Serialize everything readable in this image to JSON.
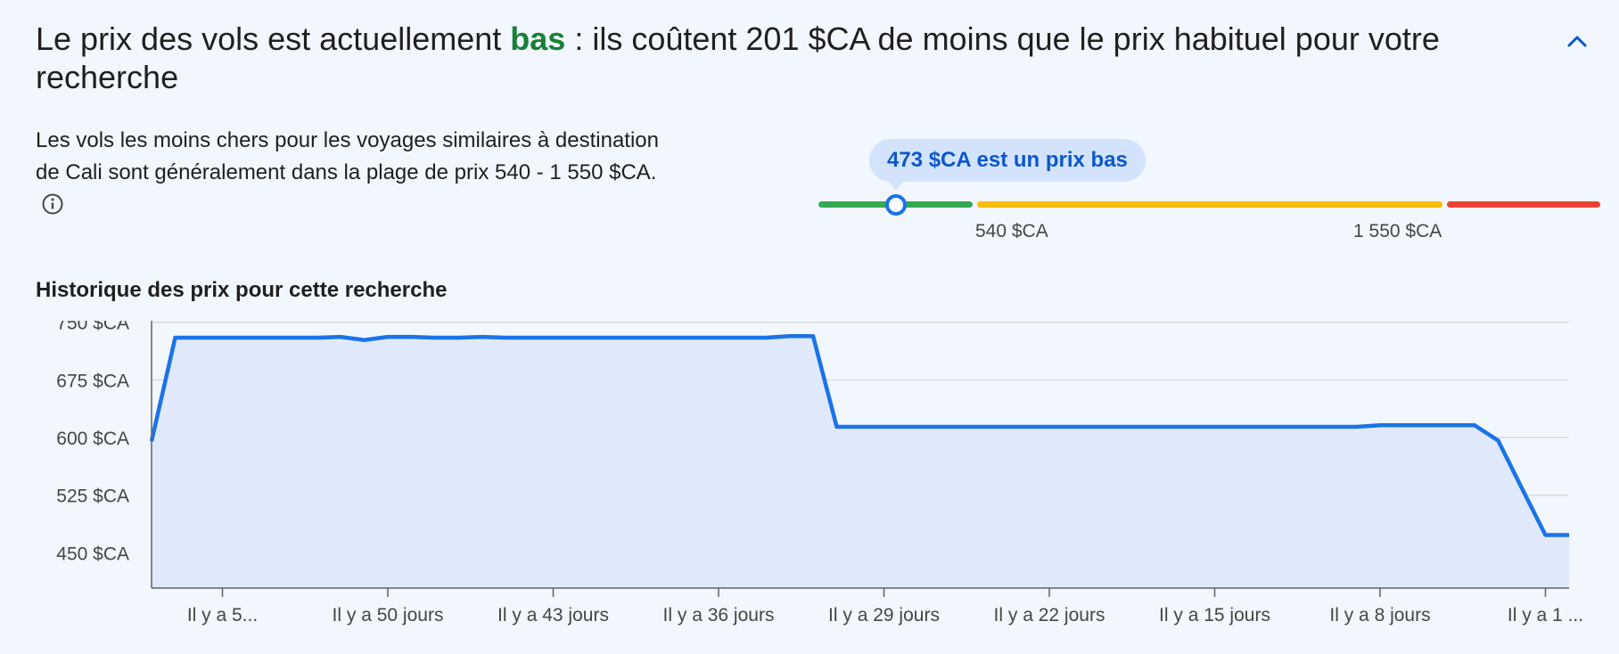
{
  "header": {
    "title_before": "Le prix des vols est actuellement ",
    "title_low": "bas",
    "title_after": " : ils coûtent 201 $CA de moins que le prix habituel pour votre recherche"
  },
  "insight": {
    "description": "Les vols les moins chers pour les voyages similaires à destination de Cali sont généralement dans la plage de prix 540 - 1 550 $CA."
  },
  "price_range": {
    "current_label": "473 $CA est un prix bas",
    "current_value": 473,
    "low_label": "540 $CA",
    "high_label": "1 550 $CA",
    "low": 540,
    "high": 1550,
    "colors": {
      "low": "#34a853",
      "typical": "#fbbc04",
      "high": "#ea4335",
      "marker": "#1a73e8"
    }
  },
  "history": {
    "title": "Historique des prix pour cette recherche"
  },
  "chart_data": {
    "type": "area",
    "title": "Historique des prix pour cette recherche",
    "xlabel": "",
    "ylabel": "",
    "x_ticks": [
      {
        "label": "Il y a 5...",
        "days_ago": 57
      },
      {
        "label": "Il y a 50 jours",
        "days_ago": 50
      },
      {
        "label": "Il y a 43 jours",
        "days_ago": 43
      },
      {
        "label": "Il y a 36 jours",
        "days_ago": 36
      },
      {
        "label": "Il y a 29 jours",
        "days_ago": 29
      },
      {
        "label": "Il y a 22 jours",
        "days_ago": 22
      },
      {
        "label": "Il y a 15 jours",
        "days_ago": 15
      },
      {
        "label": "Il y a 8 jours",
        "days_ago": 8
      },
      {
        "label": "Il y a 1 ...",
        "days_ago": 1
      }
    ],
    "y_ticks": [
      {
        "label": "450 $CA",
        "value": 450
      },
      {
        "label": "525 $CA",
        "value": 525
      },
      {
        "label": "600 $CA",
        "value": 600
      },
      {
        "label": "675 $CA",
        "value": 675
      },
      {
        "label": "750 $CA",
        "value": 750
      }
    ],
    "ylim": [
      404,
      752
    ],
    "xlim": [
      60,
      0
    ],
    "grid": true,
    "color": "#1a73e8",
    "fill": "#e0e9fc",
    "series": [
      {
        "points": [
          [
            60,
            595
          ],
          [
            59,
            730
          ],
          [
            58,
            730
          ],
          [
            57,
            730
          ],
          [
            56,
            730
          ],
          [
            55,
            730
          ],
          [
            54,
            730
          ],
          [
            53,
            730
          ],
          [
            52,
            731
          ],
          [
            51,
            727
          ],
          [
            50,
            731
          ],
          [
            49,
            731
          ],
          [
            48,
            730
          ],
          [
            47,
            730
          ],
          [
            46,
            731
          ],
          [
            45,
            730
          ],
          [
            44,
            730
          ],
          [
            43,
            730
          ],
          [
            42,
            730
          ],
          [
            41,
            730
          ],
          [
            40,
            730
          ],
          [
            39,
            730
          ],
          [
            38,
            730
          ],
          [
            37,
            730
          ],
          [
            36,
            730
          ],
          [
            35,
            730
          ],
          [
            34,
            730
          ],
          [
            33,
            732
          ],
          [
            32,
            732
          ],
          [
            31,
            614
          ],
          [
            30,
            614
          ],
          [
            29,
            614
          ],
          [
            28,
            614
          ],
          [
            27,
            614
          ],
          [
            26,
            614
          ],
          [
            25,
            614
          ],
          [
            24,
            614
          ],
          [
            23,
            614
          ],
          [
            22,
            614
          ],
          [
            21,
            614
          ],
          [
            20,
            614
          ],
          [
            19,
            614
          ],
          [
            18,
            614
          ],
          [
            17,
            614
          ],
          [
            16,
            614
          ],
          [
            15,
            614
          ],
          [
            14,
            614
          ],
          [
            13,
            614
          ],
          [
            12,
            614
          ],
          [
            11,
            614
          ],
          [
            10,
            614
          ],
          [
            9,
            614
          ],
          [
            8,
            616
          ],
          [
            7,
            616
          ],
          [
            6,
            616
          ],
          [
            5,
            616
          ],
          [
            4,
            616
          ],
          [
            3,
            596
          ],
          [
            2,
            534
          ],
          [
            1,
            473
          ],
          [
            0,
            473
          ]
        ]
      }
    ]
  }
}
